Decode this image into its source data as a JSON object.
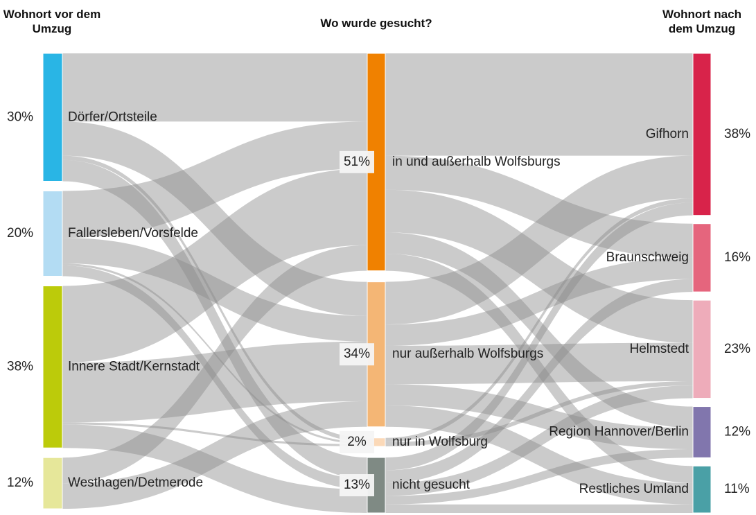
{
  "chart_data": {
    "type": "sankey",
    "column_titles": [
      "Wohnort vor dem Umzug",
      "Wo wurde gesucht?",
      "Wohnort nach dem Umzug"
    ],
    "nodes": [
      {
        "label": "Dörfer/Ortsteile",
        "column": 0,
        "value": 30,
        "value_label": "30%",
        "color": "#29b5e5"
      },
      {
        "label": "Fallersleben/Vorsfelde",
        "column": 0,
        "value": 20,
        "value_label": "20%",
        "color": "#b3dcf3"
      },
      {
        "label": "Innere Stadt/Kernstadt",
        "column": 0,
        "value": 38,
        "value_label": "38%",
        "color": "#bccb0a"
      },
      {
        "label": "Westhagen/Detmerode",
        "column": 0,
        "value": 12,
        "value_label": "12%",
        "color": "#e6e79a"
      },
      {
        "label": "in und außerhalb Wolfsburgs",
        "column": 1,
        "value": 51,
        "value_label": "51%",
        "color": "#f08100"
      },
      {
        "label": "nur außerhalb Wolfsburgs",
        "column": 1,
        "value": 34,
        "value_label": "34%",
        "color": "#f4b675"
      },
      {
        "label": "nur in Wolfsburg",
        "column": 1,
        "value": 2,
        "value_label": "2%",
        "color": "#fbd9b8"
      },
      {
        "label": "nicht gesucht",
        "column": 1,
        "value": 13,
        "value_label": "13%",
        "color": "#7f8a84"
      },
      {
        "label": "Gifhorn",
        "column": 2,
        "value": 38,
        "value_label": "38%",
        "color": "#d8234a"
      },
      {
        "label": "Braunschweig",
        "column": 2,
        "value": 16,
        "value_label": "16%",
        "color": "#e5657d"
      },
      {
        "label": "Helmstedt",
        "column": 2,
        "value": 23,
        "value_label": "23%",
        "color": "#eeacba"
      },
      {
        "label": "Region Hannover/Berlin",
        "column": 2,
        "value": 12,
        "value_label": "12%",
        "color": "#8176ad"
      },
      {
        "label": "Restliches Umland",
        "column": 2,
        "value": 11,
        "value_label": "11%",
        "color": "#4aa0a6"
      }
    ],
    "links": [
      {
        "source": 0,
        "target": 4,
        "value": 16
      },
      {
        "source": 0,
        "target": 5,
        "value": 8
      },
      {
        "source": 0,
        "target": 6,
        "value": 1
      },
      {
        "source": 0,
        "target": 7,
        "value": 5
      },
      {
        "source": 1,
        "target": 4,
        "value": 11
      },
      {
        "source": 1,
        "target": 5,
        "value": 6
      },
      {
        "source": 1,
        "target": 6,
        "value": 0.5
      },
      {
        "source": 1,
        "target": 7,
        "value": 2.5
      },
      {
        "source": 2,
        "target": 4,
        "value": 18
      },
      {
        "source": 2,
        "target": 5,
        "value": 14
      },
      {
        "source": 2,
        "target": 6,
        "value": 0.5
      },
      {
        "source": 2,
        "target": 7,
        "value": 5.5
      },
      {
        "source": 3,
        "target": 4,
        "value": 6
      },
      {
        "source": 3,
        "target": 5,
        "value": 6
      },
      {
        "source": 4,
        "target": 8,
        "value": 24
      },
      {
        "source": 4,
        "target": 9,
        "value": 8
      },
      {
        "source": 4,
        "target": 10,
        "value": 10
      },
      {
        "source": 4,
        "target": 11,
        "value": 5
      },
      {
        "source": 4,
        "target": 12,
        "value": 4
      },
      {
        "source": 5,
        "target": 8,
        "value": 10
      },
      {
        "source": 5,
        "target": 9,
        "value": 5
      },
      {
        "source": 5,
        "target": 10,
        "value": 9
      },
      {
        "source": 5,
        "target": 11,
        "value": 5
      },
      {
        "source": 5,
        "target": 12,
        "value": 5
      },
      {
        "source": 6,
        "target": 8,
        "value": 1
      },
      {
        "source": 6,
        "target": 10,
        "value": 1
      },
      {
        "source": 7,
        "target": 8,
        "value": 3
      },
      {
        "source": 7,
        "target": 9,
        "value": 3
      },
      {
        "source": 7,
        "target": 10,
        "value": 3
      },
      {
        "source": 7,
        "target": 11,
        "value": 2
      },
      {
        "source": 7,
        "target": 12,
        "value": 2
      }
    ]
  }
}
